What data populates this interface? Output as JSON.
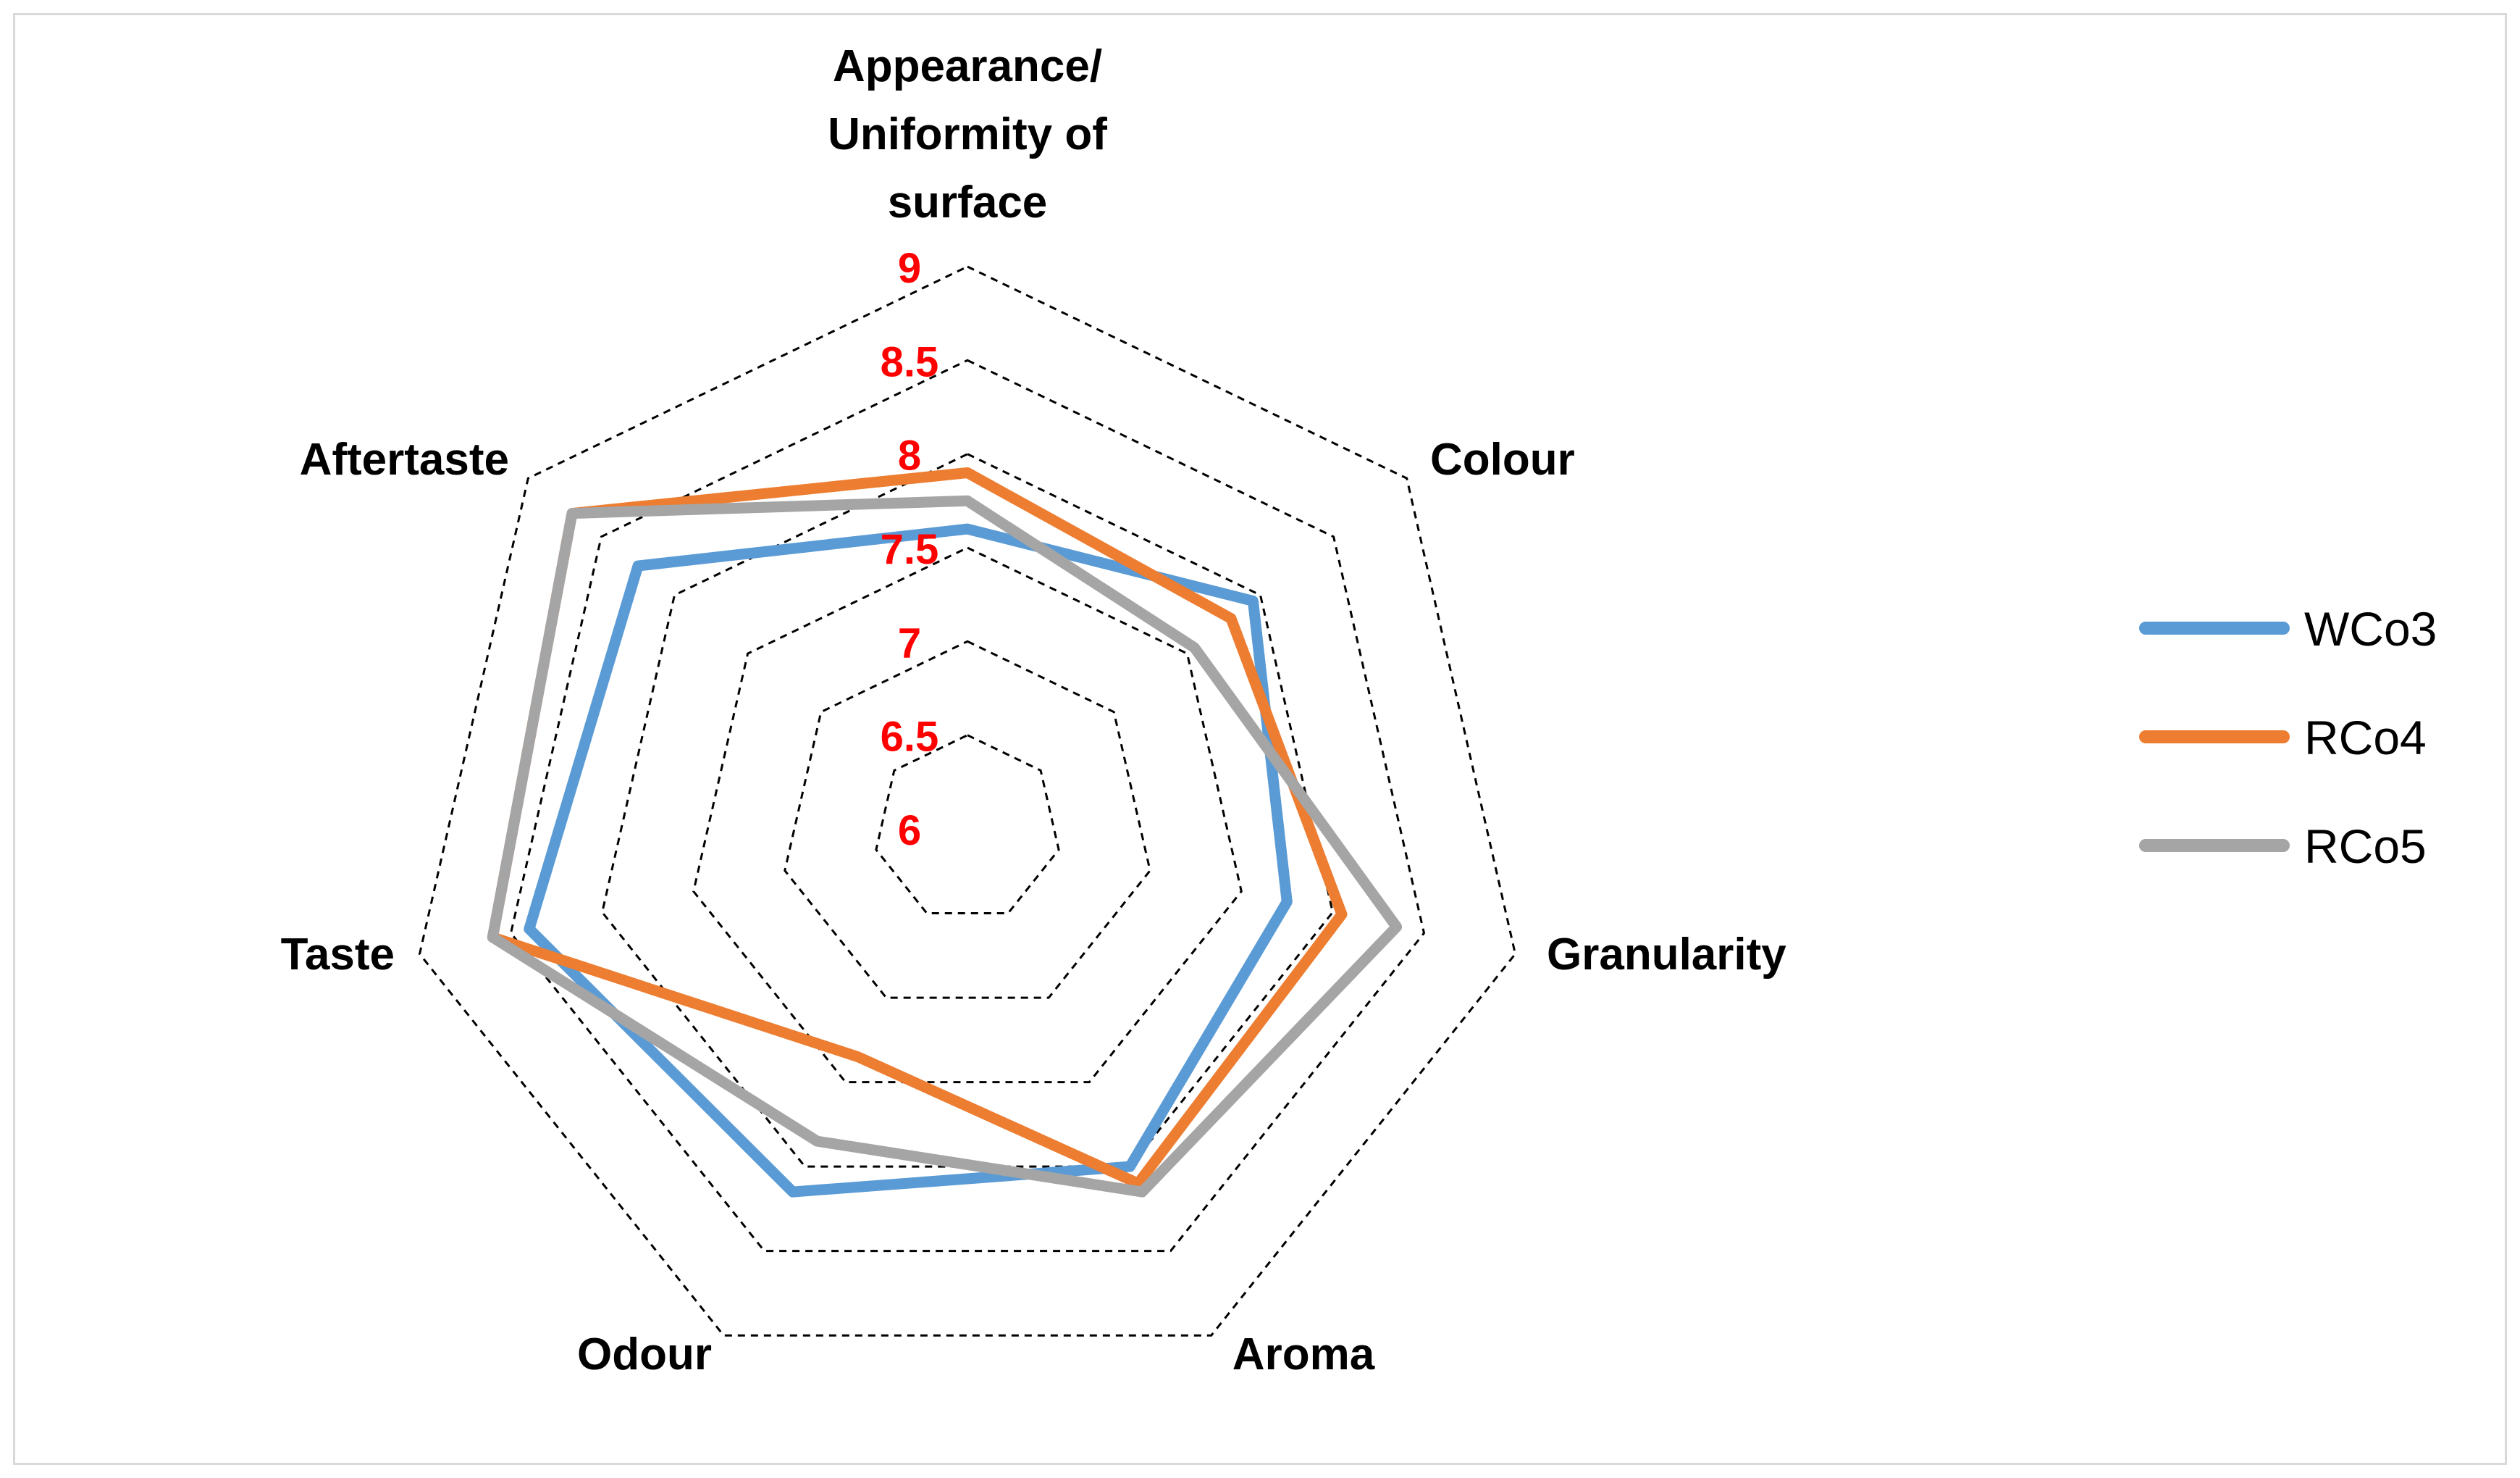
{
  "chart_data": {
    "type": "radar",
    "title": "",
    "axes": [
      [
        "Appearance/",
        "Uniformity of",
        "surface"
      ],
      [
        "Colour"
      ],
      [
        "Granularity"
      ],
      [
        "Aroma"
      ],
      [
        "Odour"
      ],
      [
        "Taste"
      ],
      [
        "Aftertaste"
      ]
    ],
    "ticks": [
      "6",
      "6.5",
      "7",
      "7.5",
      "8",
      "8.5",
      "9"
    ],
    "range": [
      6,
      9
    ],
    "grid": true,
    "grid_style": "dashed",
    "legend_position": "right",
    "tick_color": "#ff0000",
    "series": [
      {
        "name": "WCo3",
        "color": "#5b9bd5",
        "values": [
          7.6,
          7.95,
          7.75,
          8.0,
          8.15,
          8.4,
          8.25
        ]
      },
      {
        "name": "RCo4",
        "color": "#ed7d31",
        "values": [
          7.9,
          7.8,
          8.05,
          8.1,
          7.35,
          8.6,
          8.7
        ]
      },
      {
        "name": "RCo5",
        "color": "#a5a5a5",
        "values": [
          7.75,
          7.55,
          8.35,
          8.15,
          7.85,
          8.6,
          8.7
        ]
      }
    ]
  }
}
